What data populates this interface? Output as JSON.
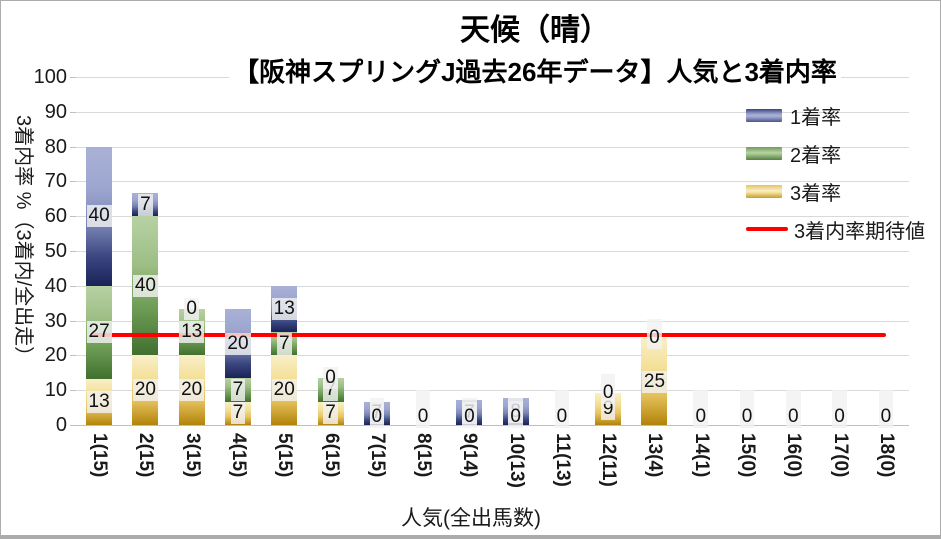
{
  "title": "天候（晴）",
  "subtitle": "【阪神スプリングJ過去26年データ】人気と3着内率",
  "axes": {
    "x_title": "人気(全出馬数)",
    "y_title": "3着内率 %（3着内/全出走）",
    "y_ticks": [
      "0",
      "10",
      "20",
      "30",
      "40",
      "50",
      "60",
      "70",
      "80",
      "90",
      "100"
    ],
    "y_max": 100
  },
  "chart_data": {
    "type": "bar",
    "stacked": true,
    "title": "天候（晴）",
    "subtitle": "【阪神スプリングJ過去26年データ】人気と3着内率",
    "xlabel": "人気(全出馬数)",
    "ylabel": "3着内率 %（3着内/全出走）",
    "ylim": [
      0,
      100
    ],
    "grid": true,
    "legend_position": "right-overlay",
    "categories": [
      "1(15)",
      "2(15)",
      "3(15)",
      "4(15)",
      "5(15)",
      "6(15)",
      "7(15)",
      "8(15)",
      "9(14)",
      "10(13)",
      "11(13)",
      "12(11)",
      "13(4)",
      "14(1)",
      "15(0)",
      "16(0)",
      "17(0)",
      "18(0)"
    ],
    "series": [
      {
        "name": "1着率",
        "color_key": "blue",
        "color_light": "#a9b1d6",
        "color_dark": "#1a2356",
        "values": [
          40,
          6.7,
          0,
          20,
          13.3,
          0,
          6.7,
          0,
          7.1,
          7.7,
          0,
          0,
          0,
          0,
          0,
          0,
          0,
          0
        ],
        "labels": [
          "40",
          "7",
          "0",
          "20",
          "13",
          "0",
          "7",
          "0",
          "7",
          "8",
          "0",
          "0",
          "0",
          "0",
          "0",
          "0",
          "0",
          "0"
        ]
      },
      {
        "name": "2着率",
        "color_key": "green",
        "color_light": "#b8d2a3",
        "color_dark": "#41702f",
        "values": [
          26.7,
          40,
          13.3,
          6.7,
          6.7,
          6.7,
          0,
          0,
          0,
          0,
          0,
          0,
          0,
          0,
          0,
          0,
          0,
          0
        ],
        "labels": [
          "27",
          "40",
          "13",
          "7",
          "7",
          "7",
          "0",
          "0",
          "0",
          "0",
          "0",
          "0",
          "0",
          "0",
          "0",
          "0",
          "0",
          "0"
        ]
      },
      {
        "name": "3着率",
        "color_key": "yellow",
        "color_light": "#f9efc8",
        "color_dark": "#b2830a",
        "values": [
          13.3,
          20,
          20,
          6.7,
          20,
          6.7,
          0,
          0,
          0,
          0,
          0,
          9.1,
          25,
          0,
          0,
          0,
          0,
          0
        ],
        "labels": [
          "13",
          "20",
          "20",
          "7",
          "20",
          "7",
          "0",
          "0",
          "0",
          "0",
          "0",
          "9",
          "25",
          "0",
          "0",
          "0",
          "0",
          "0"
        ]
      }
    ],
    "expected_line": {
      "name": "3着内率期待値",
      "value": 25.8,
      "color": "#ff0000"
    }
  }
}
